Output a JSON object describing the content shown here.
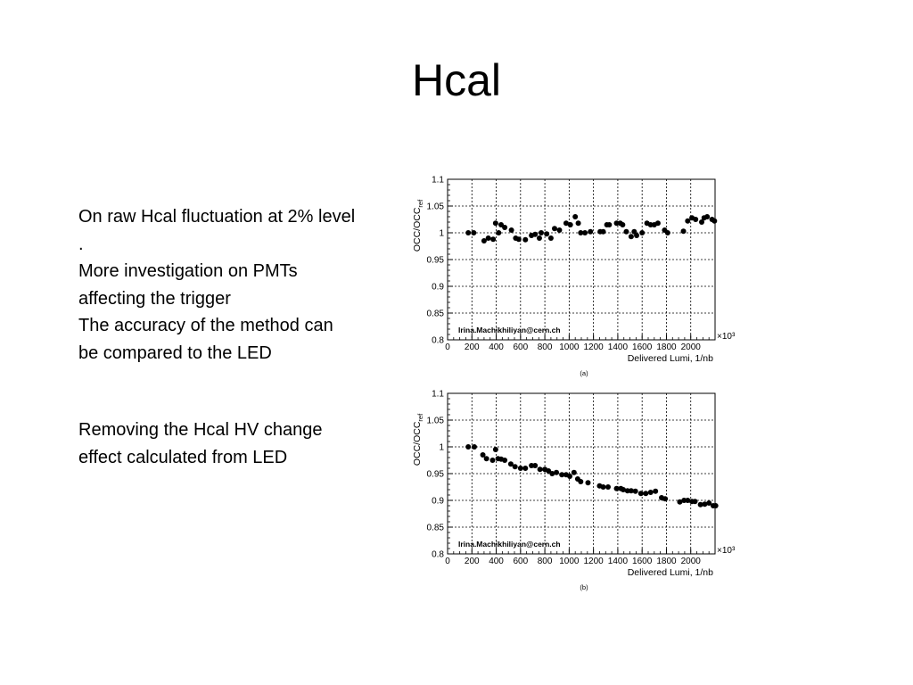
{
  "slide": {
    "title": "Hcal",
    "text_block_1": [
      "On raw Hcal fluctuation at 2% level",
      ".",
      "More investigation on PMTs",
      "affecting the trigger",
      "The accuracy of the method can",
      "be compared to the LED"
    ],
    "text_block_2": [
      "Removing the Hcal HV change",
      "effect calculated from LED"
    ]
  },
  "chart_data": [
    {
      "type": "scatter",
      "panel_label": "(a)",
      "xlabel": "Delivered Lumi, 1/nb",
      "ylabel": "OCC/OCC",
      "ylabel_sub": "ref",
      "x_multiplier": "×10³",
      "annotation": "Irina.Machikhiliyan@cern.ch",
      "xlim": [
        0,
        2200
      ],
      "ylim": [
        0.8,
        1.1
      ],
      "x_ticks": [
        0,
        200,
        400,
        600,
        800,
        1000,
        1200,
        1400,
        1600,
        1800,
        2000
      ],
      "y_ticks": [
        0.8,
        0.85,
        0.9,
        0.95,
        1,
        1.05,
        1.1
      ],
      "grid": true,
      "marker_color": "#000000",
      "points": [
        [
          170,
          1.0
        ],
        [
          215,
          1.0
        ],
        [
          300,
          0.985
        ],
        [
          335,
          0.99
        ],
        [
          375,
          0.988
        ],
        [
          395,
          1.018
        ],
        [
          420,
          1.0
        ],
        [
          440,
          1.015
        ],
        [
          470,
          1.01
        ],
        [
          525,
          1.005
        ],
        [
          560,
          0.99
        ],
        [
          585,
          0.988
        ],
        [
          640,
          0.987
        ],
        [
          690,
          0.995
        ],
        [
          720,
          0.997
        ],
        [
          755,
          0.99
        ],
        [
          770,
          1.0
        ],
        [
          815,
          0.998
        ],
        [
          850,
          0.99
        ],
        [
          880,
          1.008
        ],
        [
          920,
          1.005
        ],
        [
          975,
          1.018
        ],
        [
          1010,
          1.015
        ],
        [
          1050,
          1.03
        ],
        [
          1075,
          1.018
        ],
        [
          1095,
          1.0
        ],
        [
          1130,
          1.0
        ],
        [
          1175,
          1.002
        ],
        [
          1255,
          1.002
        ],
        [
          1280,
          1.002
        ],
        [
          1310,
          1.015
        ],
        [
          1330,
          1.015
        ],
        [
          1390,
          1.018
        ],
        [
          1420,
          1.018
        ],
        [
          1440,
          1.015
        ],
        [
          1470,
          1.002
        ],
        [
          1510,
          0.993
        ],
        [
          1535,
          1.002
        ],
        [
          1555,
          0.995
        ],
        [
          1600,
          1.0
        ],
        [
          1640,
          1.018
        ],
        [
          1670,
          1.015
        ],
        [
          1700,
          1.015
        ],
        [
          1730,
          1.018
        ],
        [
          1785,
          1.005
        ],
        [
          1810,
          1.0
        ],
        [
          1940,
          1.003
        ],
        [
          1975,
          1.022
        ],
        [
          2010,
          1.028
        ],
        [
          2040,
          1.025
        ],
        [
          2090,
          1.02
        ],
        [
          2110,
          1.028
        ],
        [
          2135,
          1.03
        ],
        [
          2175,
          1.025
        ],
        [
          2195,
          1.022
        ]
      ]
    },
    {
      "type": "scatter",
      "panel_label": "(b)",
      "xlabel": "Delivered Lumi, 1/nb",
      "ylabel": "OCC/OCC",
      "ylabel_sub": "ref",
      "x_multiplier": "×10³",
      "annotation": "Irina.Machikhiliyan@cern.ch",
      "xlim": [
        0,
        2200
      ],
      "ylim": [
        0.8,
        1.1
      ],
      "x_ticks": [
        0,
        200,
        400,
        600,
        800,
        1000,
        1200,
        1400,
        1600,
        1800,
        2000
      ],
      "y_ticks": [
        0.8,
        0.85,
        0.9,
        0.95,
        1,
        1.05,
        1.1
      ],
      "grid": true,
      "marker_color": "#000000",
      "points": [
        [
          170,
          1.0
        ],
        [
          220,
          1.0
        ],
        [
          290,
          0.985
        ],
        [
          320,
          0.978
        ],
        [
          370,
          0.975
        ],
        [
          395,
          0.995
        ],
        [
          415,
          0.978
        ],
        [
          440,
          0.977
        ],
        [
          470,
          0.975
        ],
        [
          520,
          0.968
        ],
        [
          555,
          0.963
        ],
        [
          600,
          0.96
        ],
        [
          640,
          0.96
        ],
        [
          690,
          0.965
        ],
        [
          720,
          0.965
        ],
        [
          760,
          0.958
        ],
        [
          800,
          0.958
        ],
        [
          830,
          0.955
        ],
        [
          860,
          0.95
        ],
        [
          895,
          0.952
        ],
        [
          940,
          0.948
        ],
        [
          975,
          0.948
        ],
        [
          1005,
          0.945
        ],
        [
          1040,
          0.952
        ],
        [
          1070,
          0.94
        ],
        [
          1095,
          0.935
        ],
        [
          1155,
          0.933
        ],
        [
          1250,
          0.927
        ],
        [
          1280,
          0.925
        ],
        [
          1320,
          0.925
        ],
        [
          1390,
          0.922
        ],
        [
          1425,
          0.922
        ],
        [
          1445,
          0.92
        ],
        [
          1480,
          0.918
        ],
        [
          1510,
          0.918
        ],
        [
          1545,
          0.917
        ],
        [
          1590,
          0.913
        ],
        [
          1630,
          0.913
        ],
        [
          1670,
          0.915
        ],
        [
          1710,
          0.917
        ],
        [
          1760,
          0.905
        ],
        [
          1790,
          0.903
        ],
        [
          1910,
          0.897
        ],
        [
          1945,
          0.9
        ],
        [
          1975,
          0.9
        ],
        [
          2010,
          0.898
        ],
        [
          2035,
          0.898
        ],
        [
          2080,
          0.892
        ],
        [
          2115,
          0.893
        ],
        [
          2150,
          0.895
        ],
        [
          2185,
          0.89
        ],
        [
          2205,
          0.89
        ]
      ]
    }
  ]
}
